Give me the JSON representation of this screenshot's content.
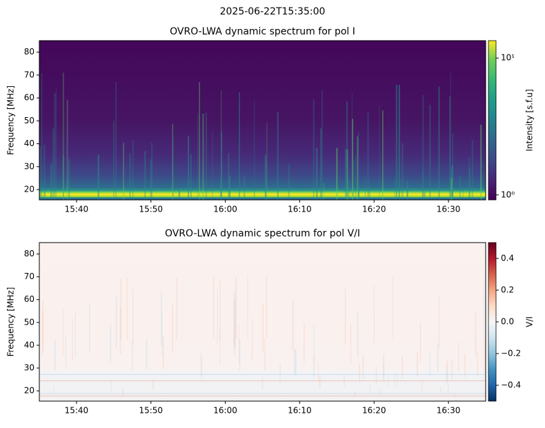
{
  "suptitle": "2025-06-22T15:35:00",
  "chart_data": [
    {
      "type": "heatmap",
      "title": "OVRO-LWA dynamic spectrum for pol I",
      "ylabel": "Frequency [MHz]",
      "xlim": [
        "15:35",
        "16:35"
      ],
      "xticks": [
        "15:40",
        "15:50",
        "16:00",
        "16:10",
        "16:20",
        "16:30"
      ],
      "ylim": [
        15.5,
        85
      ],
      "yticks": [
        20,
        30,
        40,
        50,
        60,
        70,
        80
      ],
      "colormap": "viridis",
      "colorbar": {
        "label": "Intensity [s.f.u]",
        "scale": "log",
        "lim": [
          0.92,
          13.4
        ],
        "ticks": [
          {
            "value": 1,
            "label": "10⁰"
          },
          {
            "value": 10,
            "label": "10¹"
          }
        ]
      }
    },
    {
      "type": "heatmap",
      "title": "OVRO-LWA dynamic spectrum for pol V/I",
      "ylabel": "Frequency [MHz]",
      "xlim": [
        "15:35",
        "16:35"
      ],
      "xticks": [
        "15:40",
        "15:50",
        "16:00",
        "16:10",
        "16:20",
        "16:30"
      ],
      "ylim": [
        15.5,
        85
      ],
      "yticks": [
        20,
        30,
        40,
        50,
        60,
        70,
        80
      ],
      "colormap": "RdBu_r",
      "colorbar": {
        "label": "V/I",
        "scale": "linear",
        "lim": [
          -0.5,
          0.5
        ],
        "ticks": [
          {
            "value": -0.4,
            "label": "−0.4"
          },
          {
            "value": -0.2,
            "label": "−0.2"
          },
          {
            "value": 0,
            "label": "0.0"
          },
          0.2,
          0.4
        ]
      }
    }
  ]
}
